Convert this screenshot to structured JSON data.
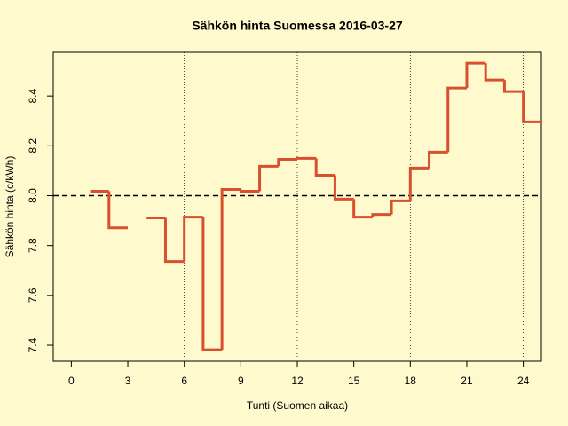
{
  "chart_data": {
    "type": "step",
    "title": "Sähkön hinta Suomessa 2016-03-27",
    "x_label": "Tunti (Suomen aikaa)",
    "y_label": "Sähkön hinta (c/kWh)",
    "x": [
      0,
      1,
      2,
      3,
      4,
      5,
      6,
      7,
      8,
      9,
      10,
      11,
      12,
      13,
      14,
      15,
      16,
      17,
      18,
      19,
      20,
      21,
      22,
      23,
      24
    ],
    "values": [
      null,
      8.018,
      7.871,
      null,
      7.911,
      7.736,
      7.914,
      7.382,
      8.025,
      8.018,
      8.118,
      8.146,
      8.15,
      8.082,
      7.986,
      7.914,
      7.925,
      7.979,
      8.111,
      8.175,
      8.432,
      8.532,
      8.464,
      8.418,
      8.296
    ],
    "color": "#d9502f",
    "xlim": [
      -0.96,
      24.96
    ],
    "xticks": [
      0,
      3,
      6,
      9,
      12,
      15,
      18,
      21,
      24
    ],
    "ylim": [
      7.336,
      8.575
    ],
    "yticks": [
      {
        "value": 7.4,
        "label": "7.4"
      },
      {
        "value": 7.6,
        "label": "7.6"
      },
      {
        "value": 7.8,
        "label": "7.8"
      },
      {
        "value": 8.0,
        "label": "8.0"
      },
      {
        "value": 8.2,
        "label": "8.2"
      },
      {
        "value": 8.4,
        "label": "8.4"
      }
    ],
    "vlines": [
      6,
      12,
      18,
      24
    ],
    "hline": 8.0
  }
}
